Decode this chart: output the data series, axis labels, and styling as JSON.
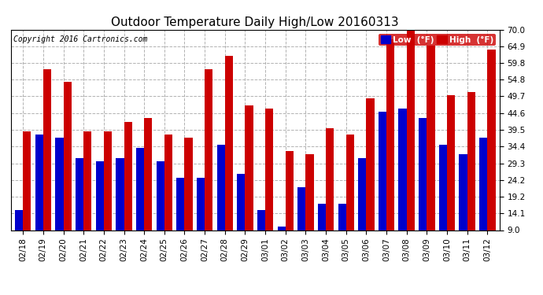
{
  "title": "Outdoor Temperature Daily High/Low 20160313",
  "copyright": "Copyright 2016 Cartronics.com",
  "dates": [
    "02/18",
    "02/19",
    "02/20",
    "02/21",
    "02/22",
    "02/23",
    "02/24",
    "02/25",
    "02/26",
    "02/27",
    "02/28",
    "02/29",
    "03/01",
    "03/02",
    "03/03",
    "03/04",
    "03/05",
    "03/06",
    "03/07",
    "03/08",
    "03/09",
    "03/10",
    "03/11",
    "03/12"
  ],
  "low": [
    15,
    38,
    37,
    31,
    30,
    31,
    34,
    30,
    25,
    25,
    35,
    26,
    15,
    10,
    22,
    17,
    17,
    31,
    45,
    46,
    43,
    35,
    32,
    37
  ],
  "high": [
    39,
    58,
    54,
    39,
    39,
    42,
    43,
    38,
    37,
    58,
    62,
    47,
    46,
    33,
    32,
    40,
    38,
    49,
    67,
    70,
    65,
    50,
    51,
    64
  ],
  "ylim": [
    9.0,
    70.0
  ],
  "yticks": [
    9.0,
    14.1,
    19.2,
    24.2,
    29.3,
    34.4,
    39.5,
    44.6,
    49.7,
    54.8,
    59.8,
    64.9,
    70.0
  ],
  "low_color": "#0000cc",
  "high_color": "#cc0000",
  "bg_color": "#ffffff",
  "grid_color": "#aaaaaa",
  "title_fontsize": 11,
  "tick_fontsize": 7.5,
  "copyright_fontsize": 7,
  "legend_low_label": "Low  (°F)",
  "legend_high_label": "High  (°F)"
}
